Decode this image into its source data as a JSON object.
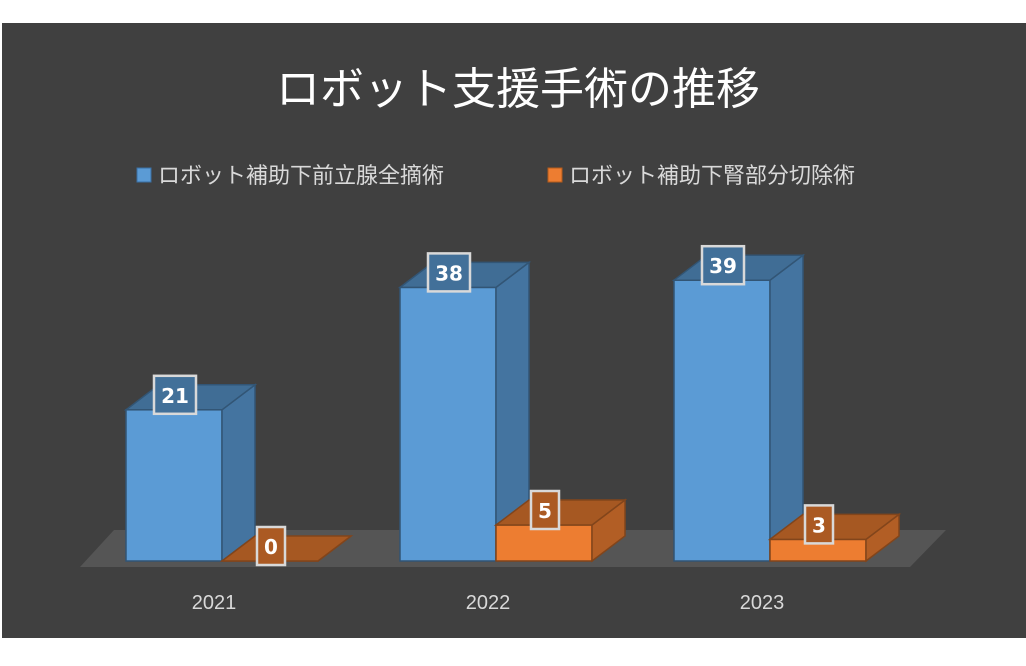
{
  "chart_data": {
    "type": "bar",
    "style": "3d-clustered-column",
    "title": "ロボット支援手術の推移",
    "categories": [
      "2021",
      "2022",
      "2023"
    ],
    "series": [
      {
        "name": "ロボット補助下前立腺全摘術",
        "values": [
          21,
          38,
          39
        ],
        "color": "#5b9bd5"
      },
      {
        "name": "ロボット補助下腎部分切除術",
        "values": [
          0,
          5,
          3
        ],
        "color": "#ed7d31"
      }
    ],
    "ylim": [
      0,
      42
    ],
    "grid": false,
    "legend_position": "top",
    "data_labels": true
  },
  "colors": {
    "background": "#404040",
    "floor": "#595959",
    "text": "#d9d9d9"
  }
}
